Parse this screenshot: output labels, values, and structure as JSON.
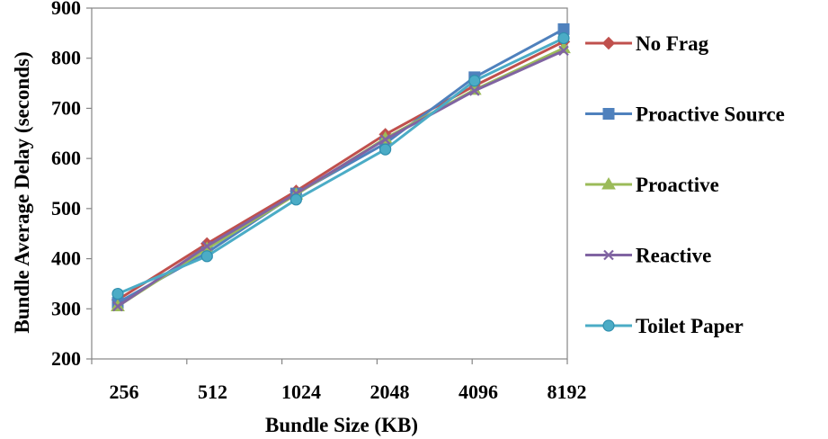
{
  "chart_data": {
    "type": "line",
    "title": "",
    "xlabel": "Bundle Size (KB)",
    "ylabel": "Bundle Average Delay (seconds)",
    "categories": [
      "256",
      "512",
      "1024",
      "2048",
      "4096",
      "8192"
    ],
    "ylim": [
      200,
      900
    ],
    "yticks": [
      200,
      300,
      400,
      500,
      600,
      700,
      800,
      900
    ],
    "grid": false,
    "legend_position": "right",
    "series": [
      {
        "name": "No Frag",
        "color": "#c0504d",
        "marker": "diamond",
        "values": [
          318,
          430,
          535,
          648,
          745,
          833
        ]
      },
      {
        "name": "Proactive Source",
        "color": "#4f81bd",
        "marker": "square",
        "values": [
          312,
          412,
          530,
          630,
          762,
          858
        ]
      },
      {
        "name": "Proactive",
        "color": "#9bbb59",
        "marker": "triangle",
        "values": [
          305,
          420,
          528,
          640,
          737,
          820
        ]
      },
      {
        "name": "Reactive",
        "color": "#8064a2",
        "marker": "x",
        "values": [
          305,
          425,
          530,
          638,
          735,
          815
        ]
      },
      {
        "name": "Toilet Paper",
        "color": "#4bacc6",
        "marker": "circle",
        "values": [
          330,
          405,
          518,
          618,
          755,
          840
        ]
      }
    ]
  }
}
